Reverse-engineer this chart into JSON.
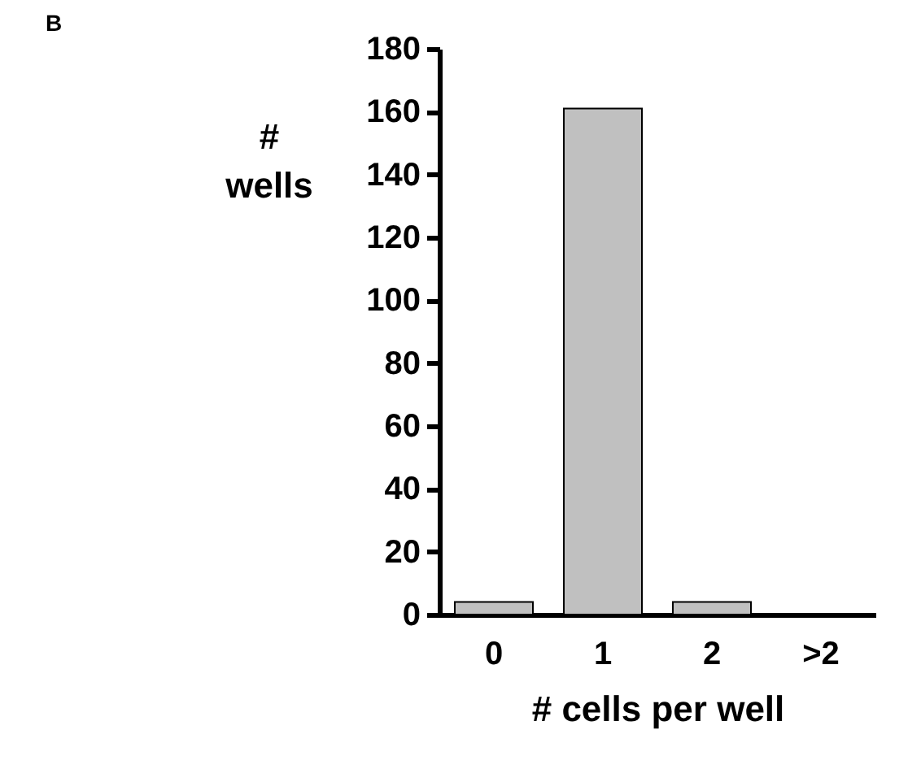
{
  "chart_data": {
    "type": "bar",
    "categories": [
      "0",
      "1",
      "2",
      ">2"
    ],
    "values": [
      4,
      161,
      4,
      0
    ],
    "color": "#c0c0c0",
    "xlabel": "# cells per well",
    "ylabel": "# wells",
    "ylim": [
      0,
      180
    ],
    "yticks": [
      0,
      20,
      40,
      60,
      80,
      100,
      120,
      140,
      160,
      180
    ],
    "grid": false,
    "annotations": [
      "B"
    ]
  }
}
